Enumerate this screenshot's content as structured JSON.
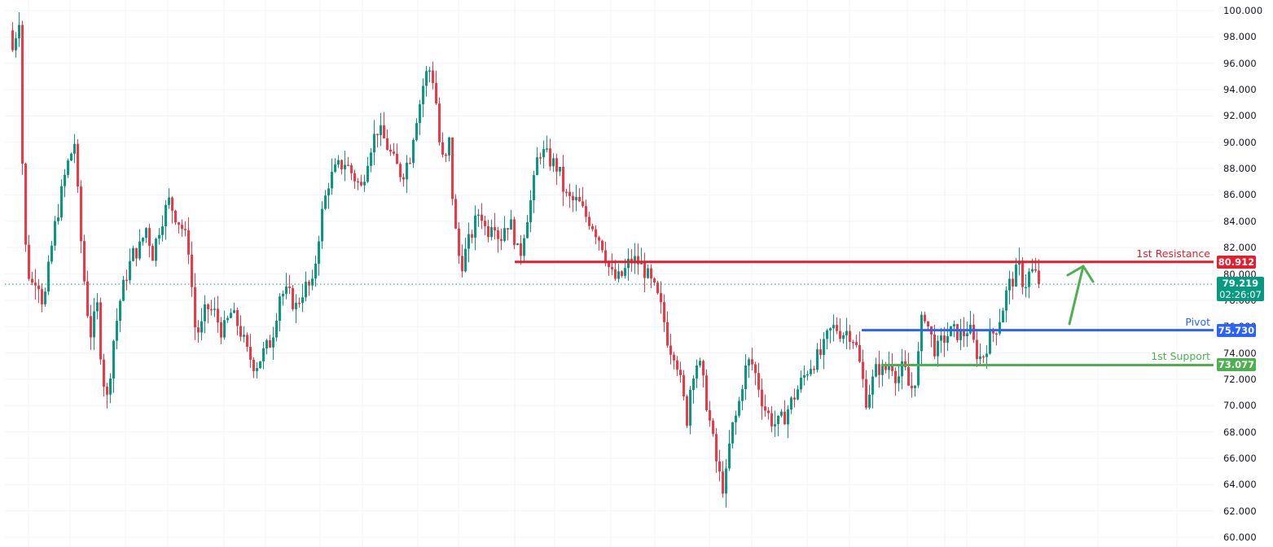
{
  "chart_data": {
    "type": "candlestick",
    "title": "",
    "xlabel": "",
    "ylabel": "",
    "ylim": [
      60,
      100
    ],
    "grid": true,
    "y_ticks": [
      "100.000",
      "98.000",
      "96.000",
      "94.000",
      "92.000",
      "90.000",
      "88.000",
      "86.000",
      "84.000",
      "82.000",
      "80.000",
      "78.000",
      "76.000",
      "74.000",
      "72.000",
      "70.000",
      "68.000",
      "66.000",
      "64.000",
      "62.000",
      "60.000"
    ],
    "y_tick_values": [
      100,
      98,
      96,
      94,
      92,
      90,
      88,
      86,
      84,
      82,
      80,
      78,
      76,
      74,
      72,
      70,
      68,
      66,
      64,
      62,
      60
    ],
    "vertical_grid_x": [
      35,
      86,
      154,
      206,
      275,
      326,
      393,
      445,
      513,
      563,
      632,
      681,
      750,
      804,
      871,
      923,
      991,
      1043,
      1114,
      1160,
      1187,
      1258,
      1348,
      1445
    ],
    "close_path": {
      "x": [
        14,
        22,
        28,
        36,
        44,
        52,
        64,
        72,
        80,
        90,
        96,
        104,
        110,
        118,
        124,
        130,
        138,
        146,
        154,
        162,
        170,
        178,
        186,
        196,
        206,
        214,
        222,
        230,
        238,
        244,
        252,
        262,
        272,
        282,
        292,
        302,
        312,
        322,
        332,
        342,
        352,
        362,
        372,
        382,
        392,
        402,
        412,
        422,
        432,
        442,
        452,
        462,
        472,
        482,
        492,
        502,
        508,
        514,
        520,
        526,
        532,
        538,
        544,
        550,
        556,
        564,
        572,
        580,
        588,
        596,
        604,
        612,
        620,
        628,
        636,
        644,
        652,
        660,
        668,
        676,
        684,
        692,
        700,
        708,
        716,
        724,
        732,
        740,
        748,
        756,
        764,
        772,
        780,
        788,
        796,
        804,
        812,
        820,
        828,
        836,
        842,
        848,
        856,
        864,
        872,
        880,
        888,
        896,
        904,
        912,
        920,
        928,
        936,
        944,
        952,
        960,
        968,
        976,
        984,
        992,
        1000,
        1008,
        1016,
        1024,
        1032,
        1040,
        1048,
        1056,
        1062,
        1068,
        1076,
        1084,
        1092,
        1100,
        1108,
        1116,
        1124,
        1132,
        1140,
        1148,
        1156,
        1164,
        1172,
        1180,
        1188,
        1196,
        1204,
        1212,
        1220,
        1228,
        1236,
        1244,
        1250,
        1256,
        1262,
        1268,
        1274
      ],
      "close": [
        97,
        99.5,
        83,
        79,
        80,
        77.5,
        83,
        85.5,
        88,
        90,
        84,
        78,
        75.5,
        77.5,
        72.5,
        70.5,
        75,
        78,
        80,
        81.5,
        82,
        83.5,
        81.5,
        84,
        85.5,
        84.5,
        83.5,
        82,
        76,
        75.5,
        77.5,
        77,
        75.5,
        77,
        76,
        74,
        73,
        74,
        75,
        78.5,
        78.5,
        77.5,
        79,
        79,
        84,
        87,
        88,
        88.5,
        87.5,
        86.5,
        89.5,
        91,
        90,
        88.5,
        87.5,
        89,
        91.5,
        93,
        95,
        95.5,
        94.5,
        90,
        88,
        90,
        84,
        80.5,
        82,
        83.5,
        85,
        83,
        84.5,
        82.5,
        84,
        83.5,
        81,
        84,
        86,
        89.5,
        89,
        88.5,
        88,
        86,
        85.5,
        85.5,
        84.5,
        84,
        83,
        82,
        80,
        79.5,
        80,
        81,
        81,
        80.5,
        79.5,
        78.5,
        77,
        74.5,
        74,
        71,
        69,
        72.5,
        73.5,
        71,
        68,
        65,
        63.5,
        68,
        69.5,
        72.5,
        73.5,
        72,
        70,
        69,
        68.5,
        69,
        70,
        71,
        72,
        73,
        73.5,
        74,
        75.5,
        76,
        75.5,
        75.7,
        75,
        72.5,
        70.5,
        71.5,
        73,
        72.5,
        73.5,
        72,
        73,
        71,
        72.5,
        77.5,
        75.5,
        74,
        75,
        75.5,
        75.6,
        75.3,
        76,
        74.2,
        73.5,
        75,
        75.7,
        77,
        79,
        79.8,
        80.5,
        79,
        80,
        80.2,
        79.2,
        79.2
      ]
    },
    "levels": [
      {
        "name": "1st Resistance",
        "value": 80.912,
        "label": "80.912",
        "color": "#e41e2c",
        "start_x": 632
      },
      {
        "name": "Pivot",
        "value": 75.73,
        "label": "75.730",
        "color": "#2962ff",
        "start_x": 1058
      },
      {
        "name": "1st Support",
        "value": 73.077,
        "label": "73.077",
        "color": "#4caf50",
        "start_x": 1082
      }
    ],
    "current_price": {
      "value": 79.219,
      "label": "79.219",
      "countdown": "02:26:07",
      "color": "#089981"
    },
    "annotation_arrow": {
      "from": [
        1313,
        398
      ],
      "to": [
        1330,
        327
      ],
      "color": "#4caf50",
      "direction": "up"
    },
    "colors": {
      "up": "#089981",
      "down": "#f23645",
      "grid": "#f0f3fa"
    }
  },
  "levels_text": {
    "resistance": "1st Resistance",
    "pivot": "Pivot",
    "support": "1st Support"
  }
}
